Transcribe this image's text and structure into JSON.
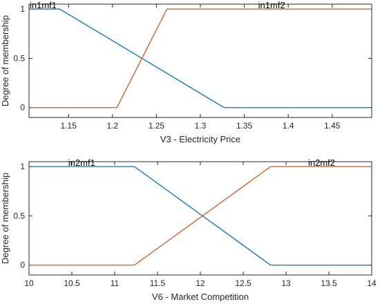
{
  "chart_data": [
    {
      "type": "line",
      "xlabel": "V3 - Electricity Price",
      "ylabel": "Degree of membership",
      "xlim": [
        1.105,
        1.495
      ],
      "ylim": [
        -0.1,
        1.05
      ],
      "xticks": [
        1.15,
        1.2,
        1.25,
        1.3,
        1.35,
        1.4,
        1.45
      ],
      "xtick_labels": [
        "1.15",
        "1.2",
        "1.25",
        "1.3",
        "1.35",
        "1.4",
        "1.45"
      ],
      "yticks": [
        0,
        0.5,
        1
      ],
      "ytick_labels": [
        "0",
        "0.5",
        "1"
      ],
      "series": [
        {
          "name": "in1mf1",
          "color": "#0072BD",
          "x": [
            1.105,
            1.14,
            1.327,
            1.495
          ],
          "y": [
            1,
            1,
            0,
            0
          ]
        },
        {
          "name": "in1mf2",
          "color": "#D95319",
          "x": [
            1.105,
            1.205,
            1.262,
            1.495
          ],
          "y": [
            0,
            0,
            1,
            1
          ]
        }
      ],
      "labels": [
        {
          "text": "in1mf1",
          "x": 1.105,
          "y": 1.0
        },
        {
          "text": "in1mf2",
          "x": 1.365,
          "y": 1.0
        }
      ]
    },
    {
      "type": "line",
      "xlabel": "V6 - Market Competition",
      "ylabel": "Degree of membership",
      "xlim": [
        10,
        14
      ],
      "ylim": [
        -0.1,
        1.05
      ],
      "xticks": [
        10,
        10.5,
        11,
        11.5,
        12,
        12.5,
        13,
        13.5,
        14
      ],
      "xtick_labels": [
        "10",
        "10.5",
        "11",
        "11.5",
        "12",
        "12.5",
        "13",
        "13.5",
        "14"
      ],
      "yticks": [
        0,
        0.5,
        1
      ],
      "ytick_labels": [
        "0",
        "0.5",
        "1"
      ],
      "series": [
        {
          "name": "in2mf1",
          "color": "#0072BD",
          "x": [
            10,
            11.23,
            12.82,
            14
          ],
          "y": [
            1,
            1,
            0,
            0
          ]
        },
        {
          "name": "in2mf2",
          "color": "#D95319",
          "x": [
            10,
            11.23,
            12.82,
            14
          ],
          "y": [
            0,
            0,
            1,
            1
          ]
        }
      ],
      "labels": [
        {
          "text": "in2mf1",
          "x": 10.45,
          "y": 1.0
        },
        {
          "text": "in2mf2",
          "x": 13.25,
          "y": 1.0
        }
      ]
    }
  ]
}
